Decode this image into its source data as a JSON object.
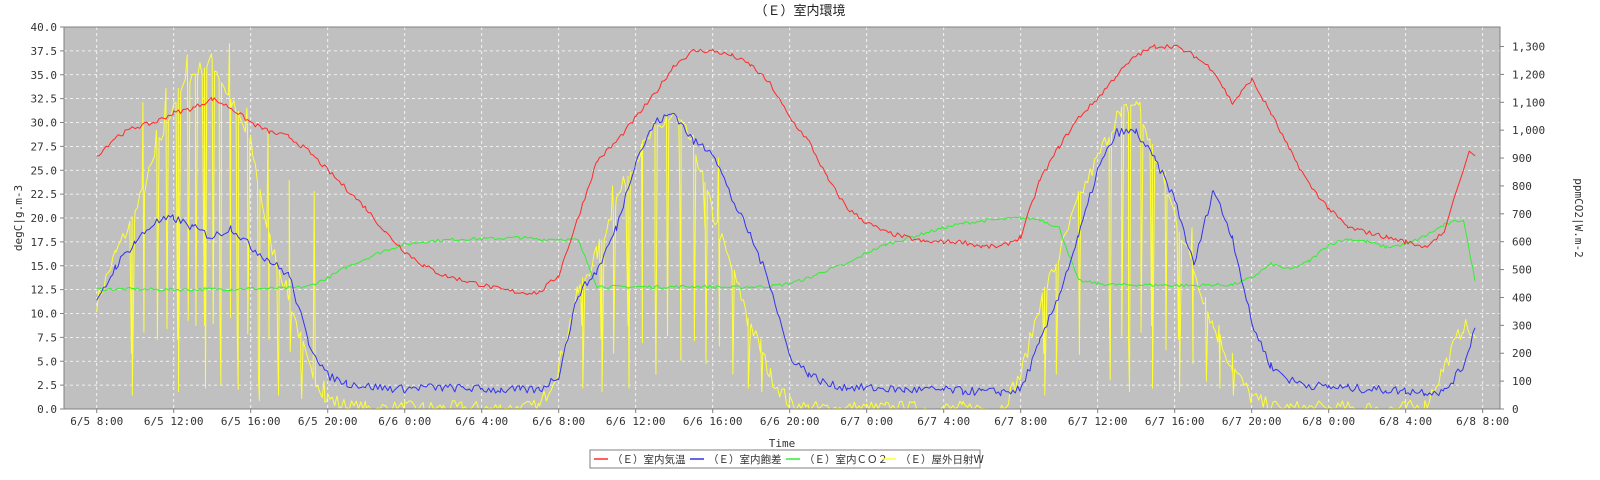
{
  "chart_data": {
    "type": "line",
    "title": "（Ｅ）室内環境",
    "xlabel": "Time",
    "ylabel_left": "degC|g.m-3",
    "ylabel_right": "ppmCO2|W.m-2",
    "x_ticks": [
      "6/5 8:00",
      "6/5 12:00",
      "6/5 16:00",
      "6/5 20:00",
      "6/6 0:00",
      "6/6 4:00",
      "6/6 8:00",
      "6/6 12:00",
      "6/6 16:00",
      "6/6 20:00",
      "6/7 0:00",
      "6/7 4:00",
      "6/7 8:00",
      "6/7 12:00",
      "6/7 16:00",
      "6/7 20:00",
      "6/8 0:00",
      "6/8 4:00",
      "6/8 8:00"
    ],
    "x_range_hours": [
      -1.7,
      72.9
    ],
    "ylim_left": [
      0,
      40
    ],
    "y_ticks_left": [
      "0.0",
      "2.5",
      "5.0",
      "7.5",
      "10.0",
      "12.5",
      "15.0",
      "17.5",
      "20.0",
      "22.5",
      "25.0",
      "27.5",
      "30.0",
      "32.5",
      "35.0",
      "37.5",
      "40.0"
    ],
    "ylim_right": [
      0,
      1370
    ],
    "y_ticks_right": [
      "0",
      "100",
      "200",
      "300",
      "400",
      "500",
      "600",
      "700",
      "800",
      "900",
      "1,000",
      "1,100",
      "1,200",
      "1,300"
    ],
    "grid": true,
    "background": "#c0c0c0",
    "legend_position": "bottom",
    "series": [
      {
        "name": "（Ｅ）室内気温",
        "color": "#ff2a2a",
        "axis": "left",
        "x": [
          0,
          1,
          2,
          3,
          4,
          5,
          6,
          7,
          8,
          9,
          10,
          11,
          12,
          13,
          14,
          15,
          16,
          17,
          18,
          19,
          20,
          21,
          22,
          23,
          24,
          25,
          26,
          27,
          28,
          29,
          30,
          31,
          32,
          33,
          34,
          35,
          36,
          37,
          38,
          39,
          40,
          41,
          42,
          43,
          44,
          45,
          46,
          47,
          48,
          49,
          50,
          51,
          52,
          53,
          54,
          55,
          56,
          57,
          58,
          59,
          60,
          61,
          62,
          63,
          64,
          65,
          66,
          67,
          68,
          69,
          70
        ],
        "values": [
          26.5,
          28.5,
          29.5,
          30,
          31,
          31.5,
          32.5,
          31.5,
          30,
          29,
          28.5,
          27,
          25,
          23,
          21,
          18.5,
          16.5,
          15,
          14,
          13.5,
          13,
          12.5,
          12.2,
          12.2,
          14,
          20,
          26,
          28,
          30.5,
          33,
          36,
          37.5,
          37.5,
          37,
          36,
          34,
          30.5,
          28,
          24,
          21,
          19.5,
          18.5,
          18,
          17.5,
          17.5,
          17.5,
          17,
          17,
          18,
          24,
          27.5,
          30.5,
          32.5,
          35,
          37,
          38,
          38,
          37,
          35.5,
          32,
          34.5,
          31,
          27,
          23.5,
          21,
          19,
          18.5,
          18,
          17.5,
          17,
          18.5
        ],
        "extra": [
          [
            70.5,
            22
          ],
          [
            71,
            25
          ],
          [
            71.3,
            27
          ],
          [
            71.6,
            26.5
          ]
        ]
      },
      {
        "name": "（Ｅ）室内飽差",
        "color": "#3333ee",
        "axis": "left",
        "x": [
          0,
          1,
          2,
          3,
          4,
          5,
          6,
          7,
          8,
          9,
          10,
          11,
          12,
          13,
          14,
          15,
          16,
          17,
          18,
          19,
          20,
          21,
          22,
          23,
          24,
          25,
          26,
          27,
          28,
          29,
          30,
          31,
          32,
          33,
          34,
          35,
          36,
          37,
          38,
          39,
          40,
          41,
          42,
          43,
          44,
          45,
          46,
          47,
          48,
          49,
          50,
          51,
          52,
          53,
          54,
          55,
          56,
          57,
          58,
          59,
          60,
          61,
          62,
          63,
          64,
          65,
          66,
          67,
          68,
          69,
          70,
          71,
          71.6
        ],
        "values": [
          11,
          15,
          17.5,
          19.5,
          20,
          19,
          18,
          19,
          17,
          15.5,
          14,
          7,
          3.5,
          2.7,
          2.4,
          2.2,
          2.1,
          2.3,
          2.2,
          2.2,
          2.1,
          2.0,
          2.0,
          2.0,
          3.5,
          12,
          14.5,
          19,
          26,
          30,
          31,
          28,
          27,
          22,
          18,
          13,
          5.5,
          3.7,
          2.5,
          2.3,
          2.2,
          2.1,
          2.0,
          2.0,
          2.0,
          1.9,
          1.8,
          1.8,
          2.0,
          7,
          12,
          18,
          25,
          29,
          29,
          26,
          22,
          15,
          23,
          18,
          9,
          4.5,
          3.0,
          2.5,
          2.3,
          2.2,
          2.1,
          2.0,
          1.9,
          1.8,
          1.8,
          4.5,
          8.5
        ]
      },
      {
        "name": "（Ｅ）室内ＣＯ２",
        "color": "#33ee33",
        "axis": "right",
        "x": [
          0,
          1,
          2,
          3,
          4,
          5,
          6,
          7,
          8,
          9,
          10,
          11,
          12,
          13,
          14,
          15,
          16,
          17,
          18,
          19,
          20,
          21,
          22,
          23,
          24,
          25,
          26,
          27,
          28,
          29,
          30,
          31,
          32,
          33,
          34,
          35,
          36,
          37,
          38,
          39,
          40,
          41,
          42,
          43,
          44,
          45,
          46,
          47,
          48,
          49,
          50,
          51,
          52,
          53,
          54,
          55,
          56,
          57,
          58,
          59,
          60,
          61,
          62,
          63,
          64,
          65,
          66,
          67,
          68,
          69,
          70,
          71,
          71.6
        ],
        "values": [
          430,
          430,
          430,
          428,
          428,
          428,
          430,
          430,
          432,
          432,
          433,
          440,
          470,
          510,
          540,
          570,
          590,
          600,
          605,
          610,
          610,
          612,
          615,
          608,
          610,
          605,
          440,
          438,
          438,
          438,
          438,
          440,
          438,
          436,
          438,
          440,
          450,
          470,
          500,
          520,
          560,
          590,
          610,
          630,
          650,
          665,
          675,
          680,
          685,
          680,
          650,
          460,
          450,
          445,
          445,
          445,
          443,
          443,
          445,
          445,
          470,
          520,
          500,
          530,
          590,
          610,
          600,
          580,
          590,
          620,
          660,
          680,
          460
        ]
      },
      {
        "name": "（Ｅ）屋外日射W",
        "color": "#ffff33",
        "axis": "right",
        "x": [
          0,
          1,
          2,
          3,
          4,
          5,
          6,
          7,
          8,
          9,
          10,
          11,
          12,
          13,
          14,
          15,
          16,
          17,
          18,
          19,
          20,
          21,
          22,
          23,
          24,
          25,
          26,
          27,
          28,
          29,
          30,
          31,
          32,
          33,
          34,
          35,
          36,
          37,
          38,
          39,
          40,
          41,
          42,
          43,
          44,
          45,
          46,
          47,
          48,
          49,
          50,
          51,
          52,
          53,
          54,
          55,
          56,
          57,
          58,
          59,
          60,
          61,
          62,
          63,
          64,
          65,
          66,
          67,
          68,
          69,
          70,
          71,
          71.6
        ],
        "values": [
          380,
          560,
          700,
          900,
          1100,
          1200,
          1250,
          1100,
          950,
          600,
          400,
          150,
          40,
          5,
          0,
          0,
          0,
          0,
          0,
          0,
          0,
          0,
          0,
          5,
          150,
          420,
          560,
          750,
          900,
          1000,
          1050,
          950,
          700,
          500,
          300,
          120,
          20,
          0,
          0,
          0,
          0,
          0,
          0,
          0,
          0,
          0,
          0,
          5,
          120,
          380,
          550,
          750,
          900,
          1050,
          1100,
          900,
          700,
          500,
          300,
          150,
          40,
          5,
          0,
          0,
          0,
          0,
          0,
          0,
          0,
          10,
          150,
          300,
          260
        ],
        "spikes": [
          [
            1.8,
            200
          ],
          [
            2.4,
            1100
          ],
          [
            3.1,
            1000
          ],
          [
            3.6,
            1150
          ],
          [
            4.2,
            250
          ],
          [
            4.7,
            1270
          ],
          [
            5.1,
            1200
          ],
          [
            5.6,
            300
          ],
          [
            6.0,
            1220
          ],
          [
            6.4,
            350
          ],
          [
            6.9,
            1310
          ],
          [
            7.3,
            280
          ],
          [
            7.8,
            1080
          ],
          [
            8.4,
            120
          ],
          [
            8.9,
            1000
          ],
          [
            9.4,
            200
          ],
          [
            10.0,
            820
          ],
          [
            10.6,
            150
          ],
          [
            11.3,
            780
          ],
          [
            11.8,
            100
          ],
          [
            25.2,
            300
          ],
          [
            26.2,
            250
          ],
          [
            26.8,
            800
          ],
          [
            27.6,
            300
          ],
          [
            28.3,
            950
          ],
          [
            29.0,
            500
          ],
          [
            29.6,
            1050
          ],
          [
            30.3,
            700
          ],
          [
            31.0,
            980
          ],
          [
            31.6,
            650
          ],
          [
            32.3,
            900
          ],
          [
            33.0,
            500
          ],
          [
            33.8,
            300
          ],
          [
            34.5,
            250
          ],
          [
            49.2,
            200
          ],
          [
            49.8,
            500
          ],
          [
            51.0,
            780
          ],
          [
            52.6,
            420
          ],
          [
            53.2,
            1050
          ],
          [
            53.6,
            250
          ],
          [
            54.2,
            1100
          ],
          [
            54.8,
            300
          ],
          [
            55.5,
            850
          ],
          [
            56.2,
            250
          ],
          [
            56.9,
            650
          ],
          [
            57.6,
            400
          ],
          [
            58.3,
            300
          ],
          [
            59.0,
            200
          ]
        ]
      }
    ]
  }
}
